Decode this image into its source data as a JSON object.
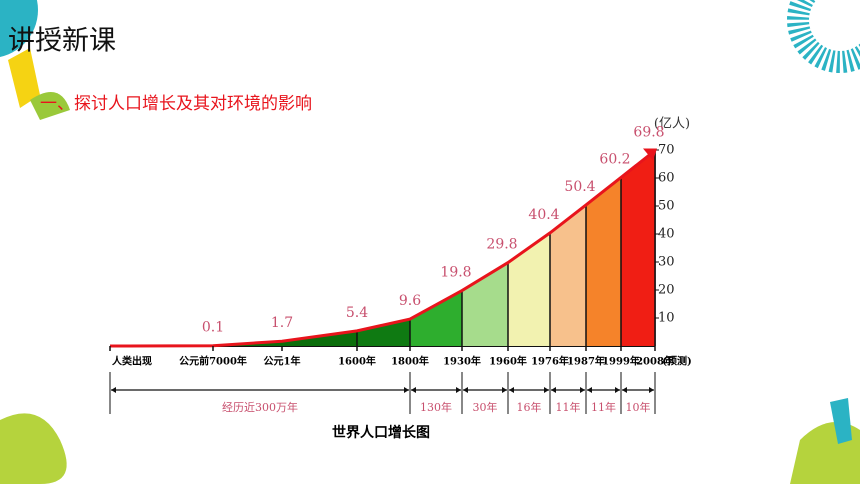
{
  "slide": {
    "title": "讲授新课",
    "subtitle": "一、探讨人口增长及其对环境的影响"
  },
  "chart_data": {
    "type": "area",
    "title": "世界人口增长图",
    "y_unit": "(亿人)",
    "categories": [
      "人类出现",
      "公元前7000年",
      "公元1年",
      "1600年",
      "1800年",
      "1930年",
      "1960年",
      "1976年",
      "1987年",
      "1999年",
      "2008年"
    ],
    "x_note": "(预测)",
    "values": [
      0,
      0.1,
      1.7,
      5.4,
      9.6,
      19.8,
      29.8,
      40.4,
      50.4,
      60.2,
      69.8
    ],
    "line_color": "#e8141c",
    "label_color": "#c8506e",
    "segment_colors": [
      "#0b6e0b",
      "#0b6e0b",
      "#0b6e0b",
      "#0f7a12",
      "#2eae2e",
      "#a6dc8c",
      "#f2f2b0",
      "#f7c18c",
      "#f5832a",
      "#f01e14"
    ],
    "intervals": [
      "经历近300万年",
      "130年",
      "30年",
      "16年",
      "11年",
      "11年",
      "10年"
    ],
    "ylim": [
      0,
      70
    ],
    "yticks": [
      10,
      20,
      30,
      40,
      50,
      60,
      70
    ]
  }
}
